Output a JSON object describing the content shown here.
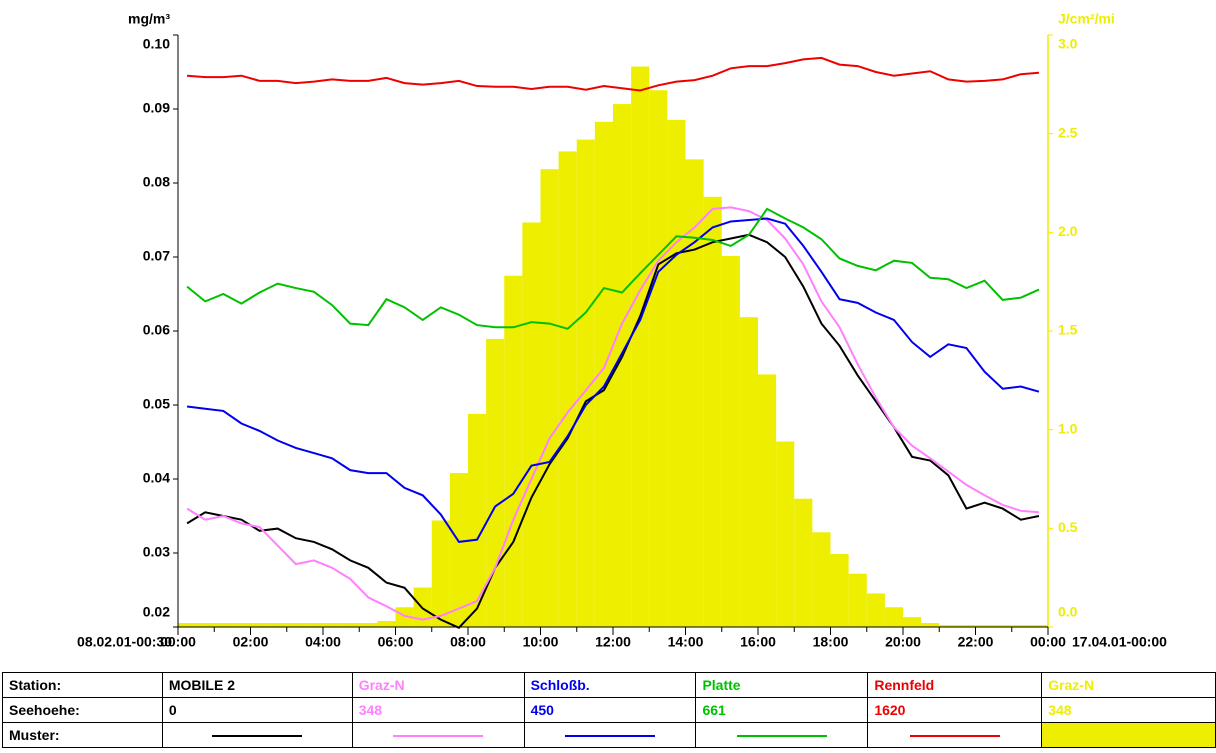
{
  "chart_data": {
    "type": "line",
    "y_label": "mg/m³",
    "y2_label": "J/cm²/mi",
    "start_label": "08.02.01-00:30",
    "end_label": "17.04.01-00:00",
    "xlim": [
      0,
      24
    ],
    "xticks": [
      {
        "value": 0,
        "label": "00:00"
      },
      {
        "value": 2,
        "label": "02:00"
      },
      {
        "value": 4,
        "label": "04:00"
      },
      {
        "value": 6,
        "label": "06:00"
      },
      {
        "value": 8,
        "label": "08:00"
      },
      {
        "value": 10,
        "label": "10:00"
      },
      {
        "value": 12,
        "label": "12:00"
      },
      {
        "value": 14,
        "label": "14:00"
      },
      {
        "value": 16,
        "label": "16:00"
      },
      {
        "value": 18,
        "label": "18:00"
      },
      {
        "value": 20,
        "label": "20:00"
      },
      {
        "value": 22,
        "label": "22:00"
      },
      {
        "value": 24,
        "label": "00:00"
      }
    ],
    "xminorticks": [
      1,
      3,
      5,
      7,
      9,
      11,
      13,
      15,
      17,
      19,
      21,
      23
    ],
    "ylim": [
      0.02,
      0.1
    ],
    "yticks": [
      0.02,
      0.03,
      0.04,
      0.05,
      0.06,
      0.07,
      0.08,
      0.09,
      {
        "value": 0.1,
        "label": "0.10"
      }
    ],
    "y2lim": [
      0,
      3
    ],
    "y2ticks": [
      {
        "value": 0,
        "label": "0.0"
      },
      0.5,
      {
        "value": 1,
        "label": "1.0"
      },
      1.5,
      {
        "value": 2,
        "label": "2.0"
      },
      2.5,
      {
        "value": 3,
        "label": "3.0"
      }
    ],
    "y2color": "#eeee00",
    "x": [
      0.25,
      0.75,
      1.25,
      1.75,
      2.25,
      2.75,
      3.25,
      3.75,
      4.25,
      4.75,
      5.25,
      5.75,
      6.25,
      6.75,
      7.25,
      7.75,
      8.25,
      8.75,
      9.25,
      9.75,
      10.25,
      10.75,
      11.25,
      11.75,
      12.25,
      12.75,
      13.25,
      13.75,
      14.25,
      14.75,
      15.25,
      15.75,
      16.25,
      16.75,
      17.25,
      17.75,
      18.25,
      18.75,
      19.25,
      19.75,
      20.25,
      20.75,
      21.25,
      21.75,
      22.25,
      22.75,
      23.25,
      23.75
    ],
    "bins": [
      0,
      0.5,
      1,
      1.5,
      2,
      2.5,
      3,
      3.5,
      4,
      4.5,
      5,
      5.5,
      6,
      6.5,
      7,
      7.5,
      8,
      8.5,
      9,
      9.5,
      10,
      10.5,
      11,
      11.5,
      12,
      12.5,
      13,
      13.5,
      14,
      14.5,
      15,
      15.5,
      16,
      16.5,
      17,
      17.5,
      18,
      18.5,
      19,
      19.5,
      20,
      20.5,
      21,
      21.5,
      22,
      22.5,
      23,
      23.5,
      24
    ],
    "row_labels": [
      "Station:",
      "Seehoehe:",
      "Muster:"
    ],
    "series": [
      {
        "name": "MOBILE 2",
        "elevation": 0,
        "color": "#000000",
        "style": "line",
        "values": [
          0.034,
          0.0355,
          0.035,
          0.0345,
          0.033,
          0.0333,
          0.032,
          0.0315,
          0.0305,
          0.029,
          0.028,
          0.026,
          0.0253,
          0.0225,
          0.021,
          0.0199,
          0.0225,
          0.028,
          0.0315,
          0.0375,
          0.042,
          0.0455,
          0.0505,
          0.052,
          0.0565,
          0.062,
          0.069,
          0.0705,
          0.071,
          0.072,
          0.0725,
          0.073,
          0.072,
          0.07,
          0.066,
          0.061,
          0.058,
          0.054,
          0.0505,
          0.047,
          0.043,
          0.0425,
          0.0405,
          0.036,
          0.0368,
          0.036,
          0.0345,
          0.035
        ]
      },
      {
        "name": "Graz-N",
        "elevation": 348,
        "color": "#ff80ff",
        "style": "line",
        "values": [
          0.036,
          0.0345,
          0.035,
          0.034,
          0.0335,
          0.031,
          0.0285,
          0.029,
          0.028,
          0.0265,
          0.024,
          0.0228,
          0.0215,
          0.021,
          0.0215,
          0.0225,
          0.0235,
          0.028,
          0.0345,
          0.04,
          0.0455,
          0.049,
          0.052,
          0.055,
          0.061,
          0.0655,
          0.0695,
          0.072,
          0.074,
          0.0765,
          0.0767,
          0.0762,
          0.075,
          0.0725,
          0.069,
          0.064,
          0.0605,
          0.0555,
          0.051,
          0.047,
          0.0445,
          0.0428,
          0.041,
          0.0392,
          0.0378,
          0.0365,
          0.0357,
          0.0355
        ]
      },
      {
        "name": "Schloßb.",
        "elevation": 450,
        "color": "#0000ee",
        "style": "line",
        "values": [
          0.0498,
          0.0495,
          0.0492,
          0.0475,
          0.0465,
          0.0452,
          0.0442,
          0.0435,
          0.0428,
          0.0412,
          0.0408,
          0.0408,
          0.0388,
          0.0378,
          0.0352,
          0.0315,
          0.0318,
          0.0363,
          0.038,
          0.0418,
          0.0423,
          0.0458,
          0.05,
          0.0525,
          0.057,
          0.0615,
          0.068,
          0.0703,
          0.072,
          0.074,
          0.0748,
          0.075,
          0.0752,
          0.0745,
          0.0715,
          0.068,
          0.0643,
          0.0638,
          0.0625,
          0.0615,
          0.0585,
          0.0565,
          0.0582,
          0.0577,
          0.0545,
          0.0522,
          0.0525,
          0.0518
        ]
      },
      {
        "name": "Platte",
        "elevation": 661,
        "color": "#00c000",
        "style": "line",
        "values": [
          0.066,
          0.064,
          0.065,
          0.0637,
          0.0652,
          0.0664,
          0.0658,
          0.0653,
          0.0635,
          0.061,
          0.0608,
          0.0643,
          0.0632,
          0.0615,
          0.0632,
          0.0622,
          0.0608,
          0.0605,
          0.0605,
          0.0612,
          0.061,
          0.0603,
          0.0625,
          0.0658,
          0.0652,
          0.0678,
          0.0703,
          0.0728,
          0.0726,
          0.0723,
          0.0715,
          0.073,
          0.0765,
          0.0752,
          0.074,
          0.0724,
          0.0698,
          0.0688,
          0.0682,
          0.0695,
          0.0692,
          0.0672,
          0.067,
          0.0658,
          0.0668,
          0.0642,
          0.0645,
          0.0656
        ]
      },
      {
        "name": "Rennfeld",
        "elevation": 1620,
        "color": "#ee0000",
        "style": "line",
        "values": [
          0.0945,
          0.0943,
          0.0943,
          0.0945,
          0.0938,
          0.0938,
          0.0935,
          0.0937,
          0.094,
          0.0938,
          0.0938,
          0.0942,
          0.0935,
          0.0933,
          0.0935,
          0.0938,
          0.0931,
          0.093,
          0.093,
          0.0927,
          0.093,
          0.093,
          0.0926,
          0.0931,
          0.0928,
          0.0925,
          0.0932,
          0.0937,
          0.0939,
          0.0945,
          0.0955,
          0.0958,
          0.0958,
          0.0962,
          0.0967,
          0.0969,
          0.096,
          0.0958,
          0.095,
          0.0945,
          0.0948,
          0.0951,
          0.094,
          0.0937,
          0.0938,
          0.094,
          0.0947,
          0.0949
        ]
      },
      {
        "name": "Graz-N",
        "elevation": 348,
        "color": "#eeee00",
        "style": "bar",
        "axis": "y2",
        "values": [
          0.02,
          0.02,
          0.02,
          0.02,
          0.02,
          0.02,
          0.02,
          0.02,
          0.02,
          0.02,
          0.02,
          0.03,
          0.1,
          0.2,
          0.54,
          0.78,
          1.08,
          1.46,
          1.78,
          2.05,
          2.32,
          2.41,
          2.47,
          2.56,
          2.65,
          2.84,
          2.72,
          2.57,
          2.37,
          2.18,
          1.88,
          1.57,
          1.28,
          0.94,
          0.65,
          0.48,
          0.37,
          0.27,
          0.17,
          0.1,
          0.05,
          0.02,
          0.01,
          0.01,
          0.01,
          0.01,
          0.01,
          0.01
        ]
      }
    ]
  }
}
